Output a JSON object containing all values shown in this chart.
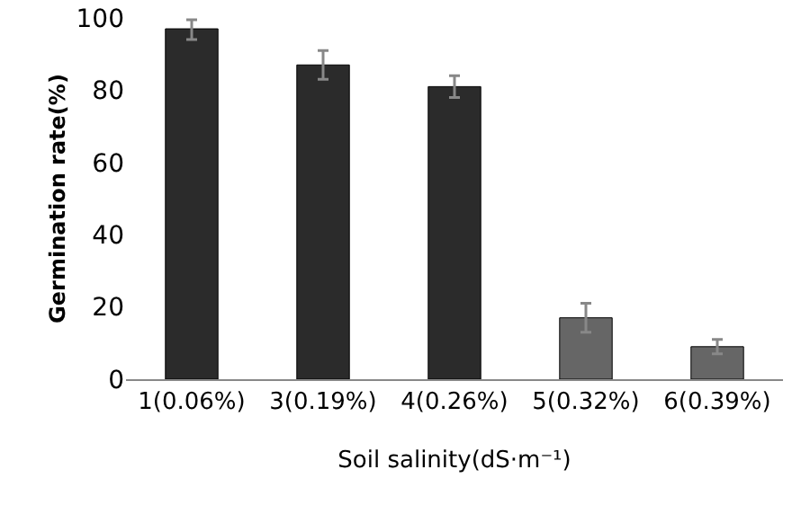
{
  "chart_data": {
    "type": "bar",
    "xlabel": "Soil salinity(dS·m⁻¹)",
    "ylabel": "Germination rate(%)",
    "categories": [
      "1(0.06%)",
      "3(0.19%)",
      "4(0.26%)",
      "5(0.32%)",
      "6(0.39%)"
    ],
    "values": [
      97,
      87,
      81,
      17,
      9
    ],
    "colors": [
      "#2b2b2b",
      "#2b2b2b",
      "#2b2b2b",
      "#666666",
      "#666666"
    ],
    "errors": [
      [
        94,
        99.5
      ],
      [
        83,
        91
      ],
      [
        78,
        84
      ],
      [
        13,
        21
      ],
      [
        7,
        11
      ]
    ],
    "ylim": [
      0,
      100
    ],
    "yticks": [
      0,
      20,
      40,
      60,
      80,
      100
    ],
    "grid": false,
    "legend": false
  }
}
